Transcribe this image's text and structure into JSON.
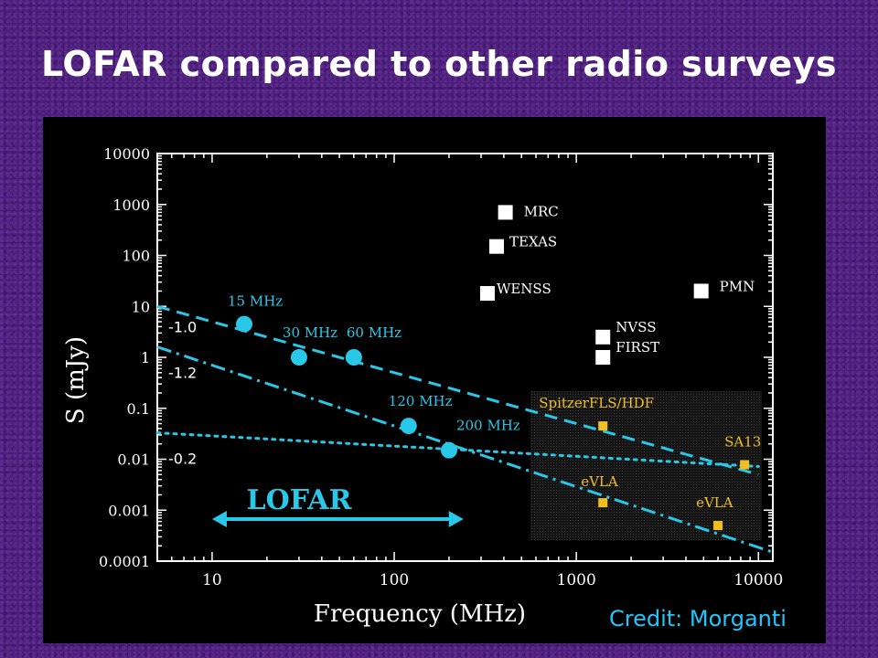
{
  "slide": {
    "title": "LOFAR compared to other radio surveys",
    "credit": "Credit: Morganti"
  },
  "colors": {
    "background": "#4a1e7a",
    "panel": "#000000",
    "axes": "#ffffff",
    "lofar": "#29c8e8",
    "future": "#f0c020",
    "existing": "#ffffff"
  },
  "chart_data": {
    "type": "scatter",
    "title": "",
    "xlabel": "Frequency (MHz)",
    "ylabel": "S (mJy)",
    "xscale": "log",
    "yscale": "log",
    "xlim": [
      5,
      12000
    ],
    "ylim": [
      0.0001,
      10000
    ],
    "grid": false,
    "legend": "none",
    "x_ticks": [
      {
        "value": 10,
        "label": "10"
      },
      {
        "value": 100,
        "label": "100"
      },
      {
        "value": 1000,
        "label": "1000"
      },
      {
        "value": 10000,
        "label": "10000"
      }
    ],
    "y_ticks": [
      {
        "value": 10000,
        "label": "10000"
      },
      {
        "value": 1000,
        "label": "1000"
      },
      {
        "value": 100,
        "label": "100"
      },
      {
        "value": 10,
        "label": "10"
      },
      {
        "value": 1,
        "label": "1"
      },
      {
        "value": 0.1,
        "label": "0.1"
      },
      {
        "value": 0.01,
        "label": "0.01"
      },
      {
        "value": 0.001,
        "label": "0.001"
      },
      {
        "value": 0.0001,
        "label": "0.0001"
      }
    ],
    "lofar_points": [
      {
        "label": "15 MHz",
        "x": 15,
        "y": 4.5
      },
      {
        "label": "30 MHz",
        "x": 30,
        "y": 1.0
      },
      {
        "label": "60 MHz",
        "x": 60,
        "y": 1.0
      },
      {
        "label": "120 MHz",
        "x": 120,
        "y": 0.045
      },
      {
        "label": "200 MHz",
        "x": 200,
        "y": 0.015
      }
    ],
    "existing_surveys": [
      {
        "label": "MRC",
        "x": 408,
        "y": 700
      },
      {
        "label": "TEXAS",
        "x": 365,
        "y": 150
      },
      {
        "label": "WENSS",
        "x": 325,
        "y": 18
      },
      {
        "label": "NVSS",
        "x": 1400,
        "y": 2.5
      },
      {
        "label": "FIRST",
        "x": 1400,
        "y": 1.0
      },
      {
        "label": "PMN",
        "x": 4850,
        "y": 20
      }
    ],
    "future_surveys": [
      {
        "label": "SpitzerFLS/HDF",
        "x": 1400,
        "y": 0.045
      },
      {
        "label": "SA13",
        "x": 8400,
        "y": 0.0078
      },
      {
        "label": "eVLA",
        "x": 1400,
        "y": 0.0014
      },
      {
        "label": "eVLA",
        "x": 6000,
        "y": 0.0005
      }
    ],
    "spectral_lines": [
      {
        "label": "-1.0",
        "style": "dashed",
        "x": [
          5,
          10000
        ],
        "y": [
          10,
          0.005
        ]
      },
      {
        "label": "-1.2",
        "style": "dashdot",
        "x": [
          5,
          12000
        ],
        "y": [
          1.6,
          0.00015
        ]
      },
      {
        "label": "-0.2",
        "style": "dotted",
        "x": [
          5,
          10000
        ],
        "y": [
          0.033,
          0.0072
        ]
      }
    ],
    "lofar_range": {
      "label": "LOFAR",
      "x": [
        10,
        240
      ]
    }
  }
}
